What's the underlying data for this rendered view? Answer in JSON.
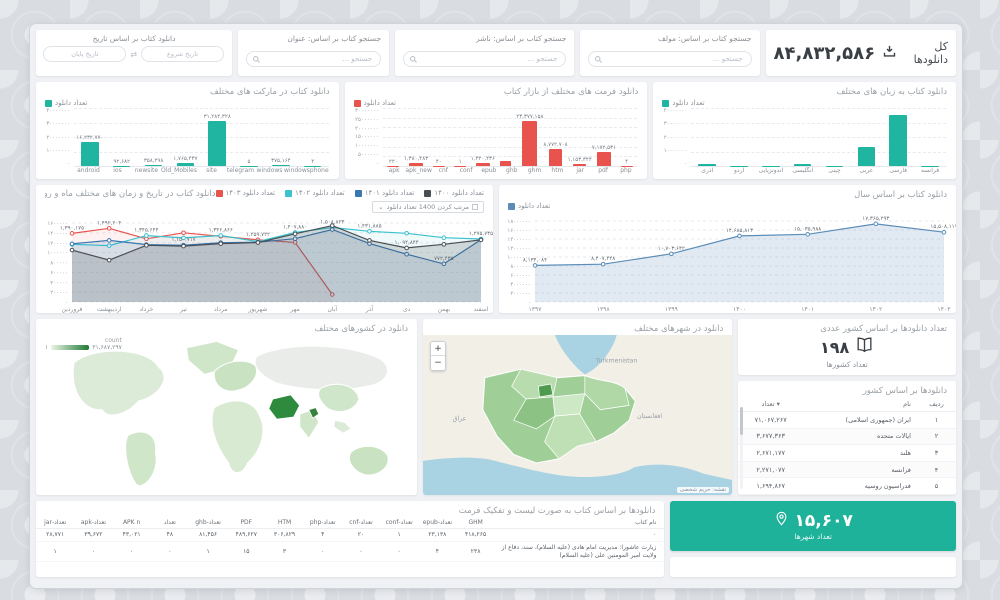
{
  "icons": {
    "caret_down": "⌄",
    "swap": "⇄",
    "sort": "▾"
  },
  "header": {
    "total": {
      "label": "کل دانلودها",
      "value": "۸۴,۸۳۲,۵۸۶"
    },
    "searches": [
      {
        "label": "جستجو کتاب بر اساس: مولف",
        "placeholder": "جستجو ..."
      },
      {
        "label": "جستجو کتاب بر اساس: ناشر",
        "placeholder": "جستجو ..."
      },
      {
        "label": "جستجو کتاب بر اساس: عنوان",
        "placeholder": "جستجو ..."
      }
    ],
    "date_filter": {
      "label": "دانلود کتاب بر اساس تاریخ",
      "start_placeholder": "تاریخ شروع",
      "end_placeholder": "تاریخ پایان"
    }
  },
  "chart_data": [
    {
      "id": "markets",
      "type": "bar",
      "title": "دانلود کتاب در مارکت های مختلف",
      "legend": "تعداد دانلود",
      "color": "#1fb5a0",
      "categories": [
        "android",
        "ios",
        "newsite",
        "Old_Mobiles",
        "site",
        "telegram",
        "windows",
        "windowsphone"
      ],
      "values": [
        16232770,
        92682,
        358298,
        1765437,
        31284328,
        5,
        375164,
        4
      ],
      "value_labels": [
        "۱۶,۲۳۲,۷۷۰",
        "۹۲,۶۸۲",
        "۳۵۸,۲۹۸",
        "۱,۷۶۵,۴۳۷",
        "۳۱,۲۸۴,۳۲۸",
        "۵",
        "۳۷۵,۱۶۴",
        "۴"
      ],
      "ylim": [
        0,
        40000000
      ],
      "ytick_step": 10000000,
      "grid": true
    },
    {
      "id": "formats",
      "type": "bar",
      "title": "دانلود فرمت های مختلف از بازار کتاب",
      "legend": "تعداد دانلود",
      "color": "#e8534e",
      "categories": [
        "apk",
        "apk_new",
        "cnf",
        "conf",
        "epub",
        "ghb",
        "ghm",
        "htm",
        "jar",
        "pdf",
        "php"
      ],
      "values": [
        220,
        1380483,
        40,
        1,
        1320436,
        2500000,
        23377158,
        8772708,
        1153344,
        7172531,
        4
      ],
      "value_labels": [
        "۲۲۰",
        "۱,۳۸۰,۴۸۳",
        "۴۰",
        "۱",
        "۱,۳۲۰,۴۳۶",
        "",
        "۲۳,۳۷۷,۱۵۸",
        "۸,۷۷۲,۷۰۸",
        "۱,۱۵۳,۳۴۴",
        "۷,۱۷۲,۵۳۱",
        "۴"
      ],
      "ylim": [
        0,
        30000000
      ],
      "ytick_step": 5000000,
      "grid": true
    },
    {
      "id": "languages",
      "type": "bar",
      "title": "دانلود کتاب به زبان های مختلف",
      "legend": "تعداد دانلود",
      "color": "#1fb5a0",
      "categories": [
        "آذری",
        "اردو",
        "اندونزیایی",
        "انگلیسی",
        "چینی",
        "عربی",
        "فارسی",
        "فرانسه"
      ],
      "values": [
        1500000,
        120000,
        80000,
        1400000,
        60000,
        13000000,
        35000000,
        90000
      ],
      "value_labels": null,
      "ylim": [
        0,
        40000000
      ],
      "ytick_step": 10000000,
      "grid": true
    },
    {
      "id": "monthly",
      "type": "line",
      "title": "دانلود کتاب در تاریخ و زمان های مختلف ماه و روز",
      "control_label": "مرتب کردن 1400 تعداد دانلود",
      "categories": [
        "فروردین",
        "اردیبهشت",
        "خرداد",
        "تیر",
        "مرداد",
        "شهریور",
        "مهر",
        "آبان",
        "آذر",
        "دی",
        "بهمن",
        "اسفند"
      ],
      "ylim": [
        0,
        1600000
      ],
      "ytick_step": 200000,
      "grid": true,
      "legend_position": "top-left",
      "series": [
        {
          "name": "تعداد دانلود ۱۴۰۳",
          "color": "#e8534e",
          "values": [
            1390175,
            1492204,
            1281000,
            1402000,
            1331000,
            1259722,
            1208000,
            152000
          ],
          "point_labels": {
            "0": "۱,۳۹۰,۱۷۵",
            "1": "۱,۴۹۲,۲۰۴",
            "5": "۱,۲۵۹,۷۲۲"
          }
        },
        {
          "name": "تعداد دانلود ۱۴۰۲",
          "color": "#3ac2cf",
          "values": [
            1168000,
            1142000,
            1345644,
            1298000,
            1346866,
            1224000,
            1407880,
            1508823,
            1431885,
            1392000,
            1302000,
            1275735
          ],
          "point_labels": {
            "2": "۱,۳۴۵,۶۴۴",
            "4": "۱,۳۴۶,۸۶۶",
            "6": "۱,۴۰۷,۸۸۰",
            "7": "۱,۵۰۸,۸۲۳",
            "8": "۱,۴۳۱,۸۸۵",
            "11": "۱,۲۷۵,۷۳۵"
          }
        },
        {
          "name": "تعداد دانلود ۱۴۰۱",
          "color": "#3a76b0",
          "values": [
            1178000,
            1248000,
            1162000,
            1150717,
            1202000,
            1212000,
            1282000,
            1468000,
            1182000,
            968000,
            772435,
            1262000
          ],
          "point_labels": {
            "3": "۱,۱۵۰,۷۱۷",
            "10": "۷۷۲,۴۳۵"
          }
        },
        {
          "name": "تعداد دانلود ۱۴۰۰",
          "color": "#4a4f54",
          "values": [
            1052000,
            848000,
            1148000,
            1132000,
            1182000,
            1204000,
            1382000,
            1548000,
            1248000,
            1094844,
            1168000,
            1258000
          ],
          "point_labels": {
            "9": "۱,۰۹۴,۸۴۴"
          }
        }
      ]
    },
    {
      "id": "yearly",
      "type": "line",
      "title": "دانلود کتاب بر اساس سال",
      "legend": "تعداد دانلود",
      "color": "#5b8db8",
      "categories": [
        "۱۳۹۷",
        "۱۳۹۸",
        "۱۳۹۹",
        "۱۴۰۰",
        "۱۴۰۱",
        "۱۴۰۲",
        "۱۴۰۳"
      ],
      "values": [
        8134084,
        8407448,
        10703642,
        14685813,
        15035988,
        17365293,
        15508119
      ],
      "value_labels": [
        "۸,۱۳۴,۰۸۴",
        "۸,۴۰۷,۴۴۸",
        "۱۰,۷۰۳,۶۴۲",
        "۱۴,۶۸۵,۸۱۳",
        "۱۵,۰۳۵,۹۸۸",
        "۱۷,۳۶۵,۲۹۳",
        "۱۵,۵۰۸,۱۱۹"
      ],
      "ylim": [
        0,
        18000000
      ],
      "ytick_step": 2000000,
      "grid": true,
      "legend_position": "top-left"
    }
  ],
  "world_map": {
    "title": "دانلود در کشورهای مختلف",
    "legend_label": "count",
    "legend_min": "۱",
    "legend_max": "۳۱,۶۸۷,۲۹۷"
  },
  "iran_map": {
    "title": "دانلود در شهرهای مختلف",
    "zoom_in": "+",
    "zoom_out": "−",
    "attribution": "نقشه: حریم شخصی",
    "labels": [
      "Turkmenistan",
      "عراق",
      "افغانستان"
    ]
  },
  "countries_card": {
    "title": "تعداد دانلودها بر اساس کشور عددی",
    "value": "۱۹۸",
    "caption": "تعداد کشورها"
  },
  "country_table": {
    "title": "دانلودها بر اساس کشور",
    "headers": [
      "ردیف",
      "نام",
      "تعداد"
    ],
    "rows": [
      [
        "۱",
        "ایران (جمهوری اسلامی)",
        "۷۱,۰۶۷,۲۶۷"
      ],
      [
        "۲",
        "ایالات متحده",
        "۳,۶۷۷,۳۶۳"
      ],
      [
        "۳",
        "هلند",
        "۲,۶۷۱,۱۷۷"
      ],
      [
        "۴",
        "فرانسه",
        "۲,۲۷۱,۰۷۷"
      ],
      [
        "۵",
        "فدراسیون روسیه",
        "۱,۶۹۴,۸۶۷"
      ]
    ]
  },
  "cities_card": {
    "value": "۱۵,۶۰۷",
    "caption": "تعداد شهرها",
    "color": "#1fb29b"
  },
  "book_table": {
    "title": "دانلودها بر اساس کتاب به صورت لیست و تفکیک فرمت",
    "headers": [
      "نام کتاب",
      "GHM",
      "تعداد-epub",
      "تعداد-conf",
      "تعداد-cnf",
      "تعداد-php",
      "HTM",
      "PDF",
      "تعداد-ghb",
      "تعداد",
      "APK n",
      "تعداد-apk",
      "تعداد-jar"
    ],
    "rows": [
      [
        "۰",
        "۴۱۸,۲۶۵",
        "۲۳,۱۳۸",
        "۱",
        "۲۰",
        "۴",
        "۳۰۶,۸۲۹",
        "۴۸۹,۶۲۷",
        "۸۱,۴۵۶",
        "۴۸",
        "۴۳,۰۲۱",
        "۳۹,۶۷۲",
        "۲۸,۷۷۱"
      ],
      [
        "زیارت عاشورا: مدیریت امام هادی (علیه السلام)، سند، دفاع از ولایت امیر المومنین علی (علیه السلام)",
        "۲۳۸",
        "۴",
        "۰",
        "۰",
        "۰",
        "۳",
        "۱۵",
        "۱",
        "۰",
        "۰",
        "۰",
        "۱"
      ]
    ]
  }
}
